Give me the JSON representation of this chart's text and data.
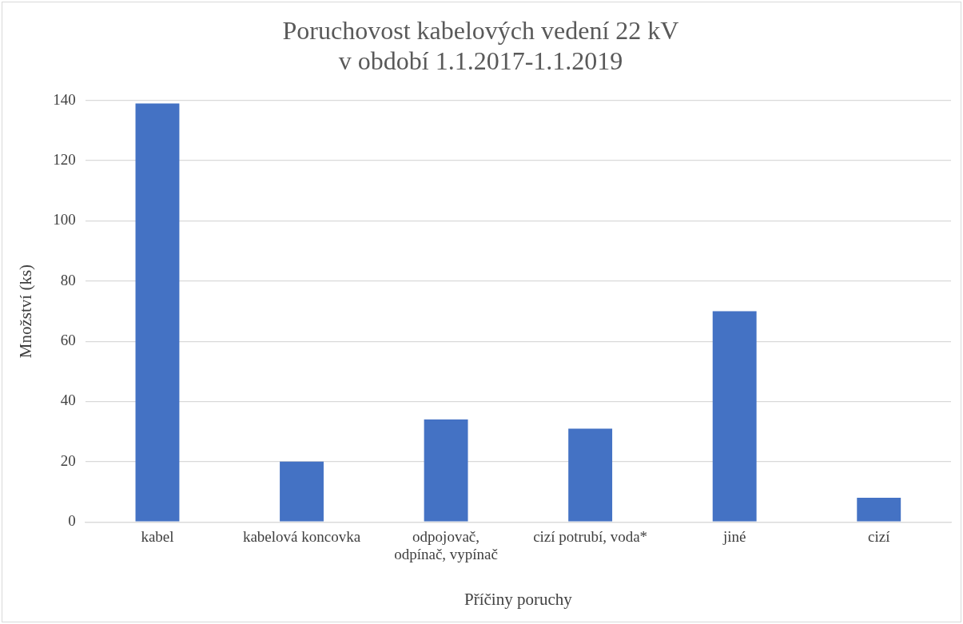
{
  "chart_data": {
    "type": "bar",
    "title": "Poruchovost kabelových vedení 22 kV\nv období 1.1.2017-1.1.2019",
    "xlabel": "Příčiny poruchy",
    "ylabel": "Množství (ks)",
    "categories": [
      "kabel",
      "kabelová koncovka",
      "odpojovač, odpínač, vypínač",
      "cizí potrubí, voda*",
      "jiné",
      "cizí"
    ],
    "values": [
      139,
      20,
      34,
      31,
      70,
      8
    ],
    "color": "#4472c4",
    "ylim": [
      0,
      140
    ],
    "yticks": [
      0,
      20,
      40,
      60,
      80,
      100,
      120,
      140
    ],
    "grid": "y"
  }
}
